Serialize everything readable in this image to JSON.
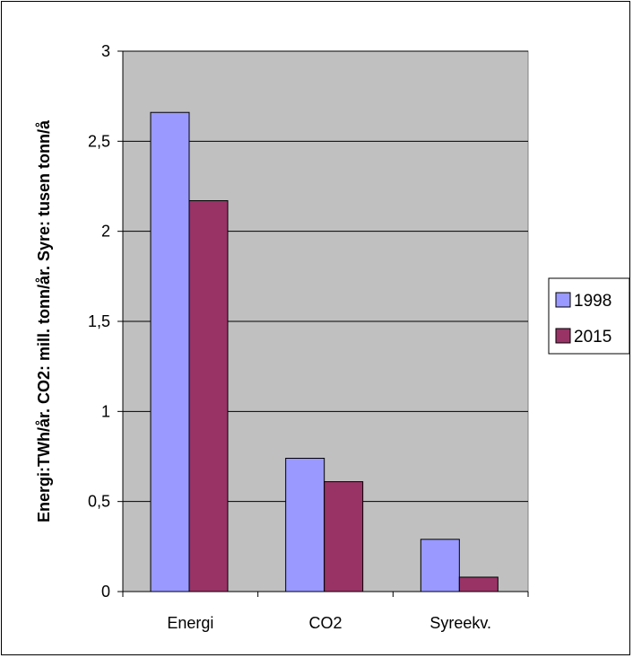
{
  "chart_data": {
    "type": "bar",
    "categories": [
      "Energi",
      "CO2",
      "Syreekv."
    ],
    "series": [
      {
        "name": "1998",
        "values": [
          2.66,
          0.74,
          0.29
        ],
        "color": "#9999ff"
      },
      {
        "name": "2015",
        "values": [
          2.17,
          0.61,
          0.08
        ],
        "color": "#993366"
      }
    ],
    "ylabel": "Energi:TWh/år. CO2: mill. tonn/år. Syre: tusen tonn/å",
    "ylim": [
      0,
      3
    ],
    "yticks": [
      0,
      0.5,
      1,
      1.5,
      2,
      2.5,
      3
    ],
    "ytick_labels": [
      "0",
      "0,5",
      "1",
      "1,5",
      "2",
      "2,5",
      "3"
    ],
    "grid": true,
    "plot_background": "#c0c0c0",
    "legend_position": "right"
  }
}
